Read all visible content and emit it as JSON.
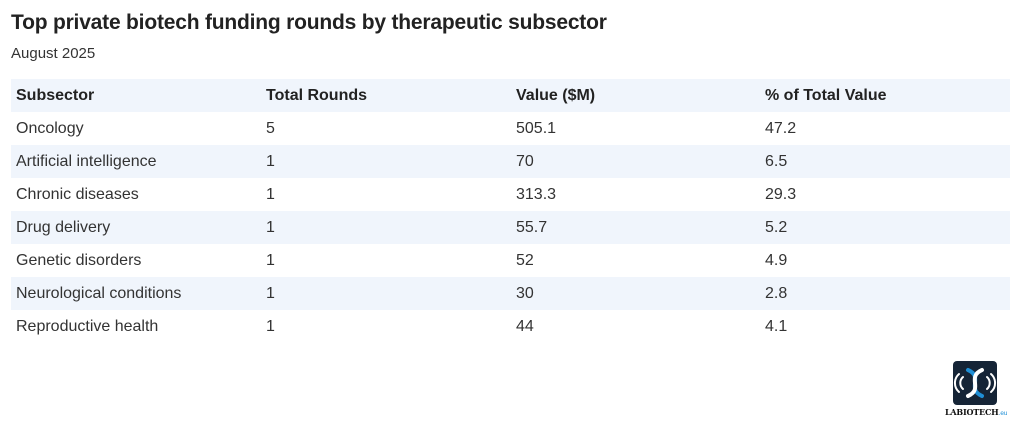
{
  "title": "Top private biotech funding rounds by therapeutic subsector",
  "subtitle": "August 2025",
  "chart_data": {
    "type": "table",
    "title": "Top private biotech funding rounds by therapeutic subsector",
    "subtitle": "August 2025",
    "columns": [
      "Subsector",
      "Total Rounds",
      "Value ($M)",
      "% of Total Value"
    ],
    "rows": [
      [
        "Oncology",
        "5",
        "505.1",
        "47.2"
      ],
      [
        "Artificial intelligence",
        "1",
        "70",
        "6.5"
      ],
      [
        "Chronic diseases",
        "1",
        "313.3",
        "29.3"
      ],
      [
        "Drug delivery",
        "1",
        "55.7",
        "5.2"
      ],
      [
        "Genetic disorders",
        "1",
        "52",
        "4.9"
      ],
      [
        "Neurological conditions",
        "1",
        "30",
        "2.8"
      ],
      [
        "Reproductive health",
        "1",
        "44",
        "4.1"
      ]
    ]
  },
  "logo": {
    "text": "LABIOTECH",
    "suffix": ".eu",
    "colors": {
      "background": "#152436",
      "accent": "#1f8fd6",
      "mark": "#ffffff"
    }
  },
  "colors": {
    "header_row": "#f0f5fc",
    "alt_row": "#f0f5fc",
    "text": "#222222"
  }
}
